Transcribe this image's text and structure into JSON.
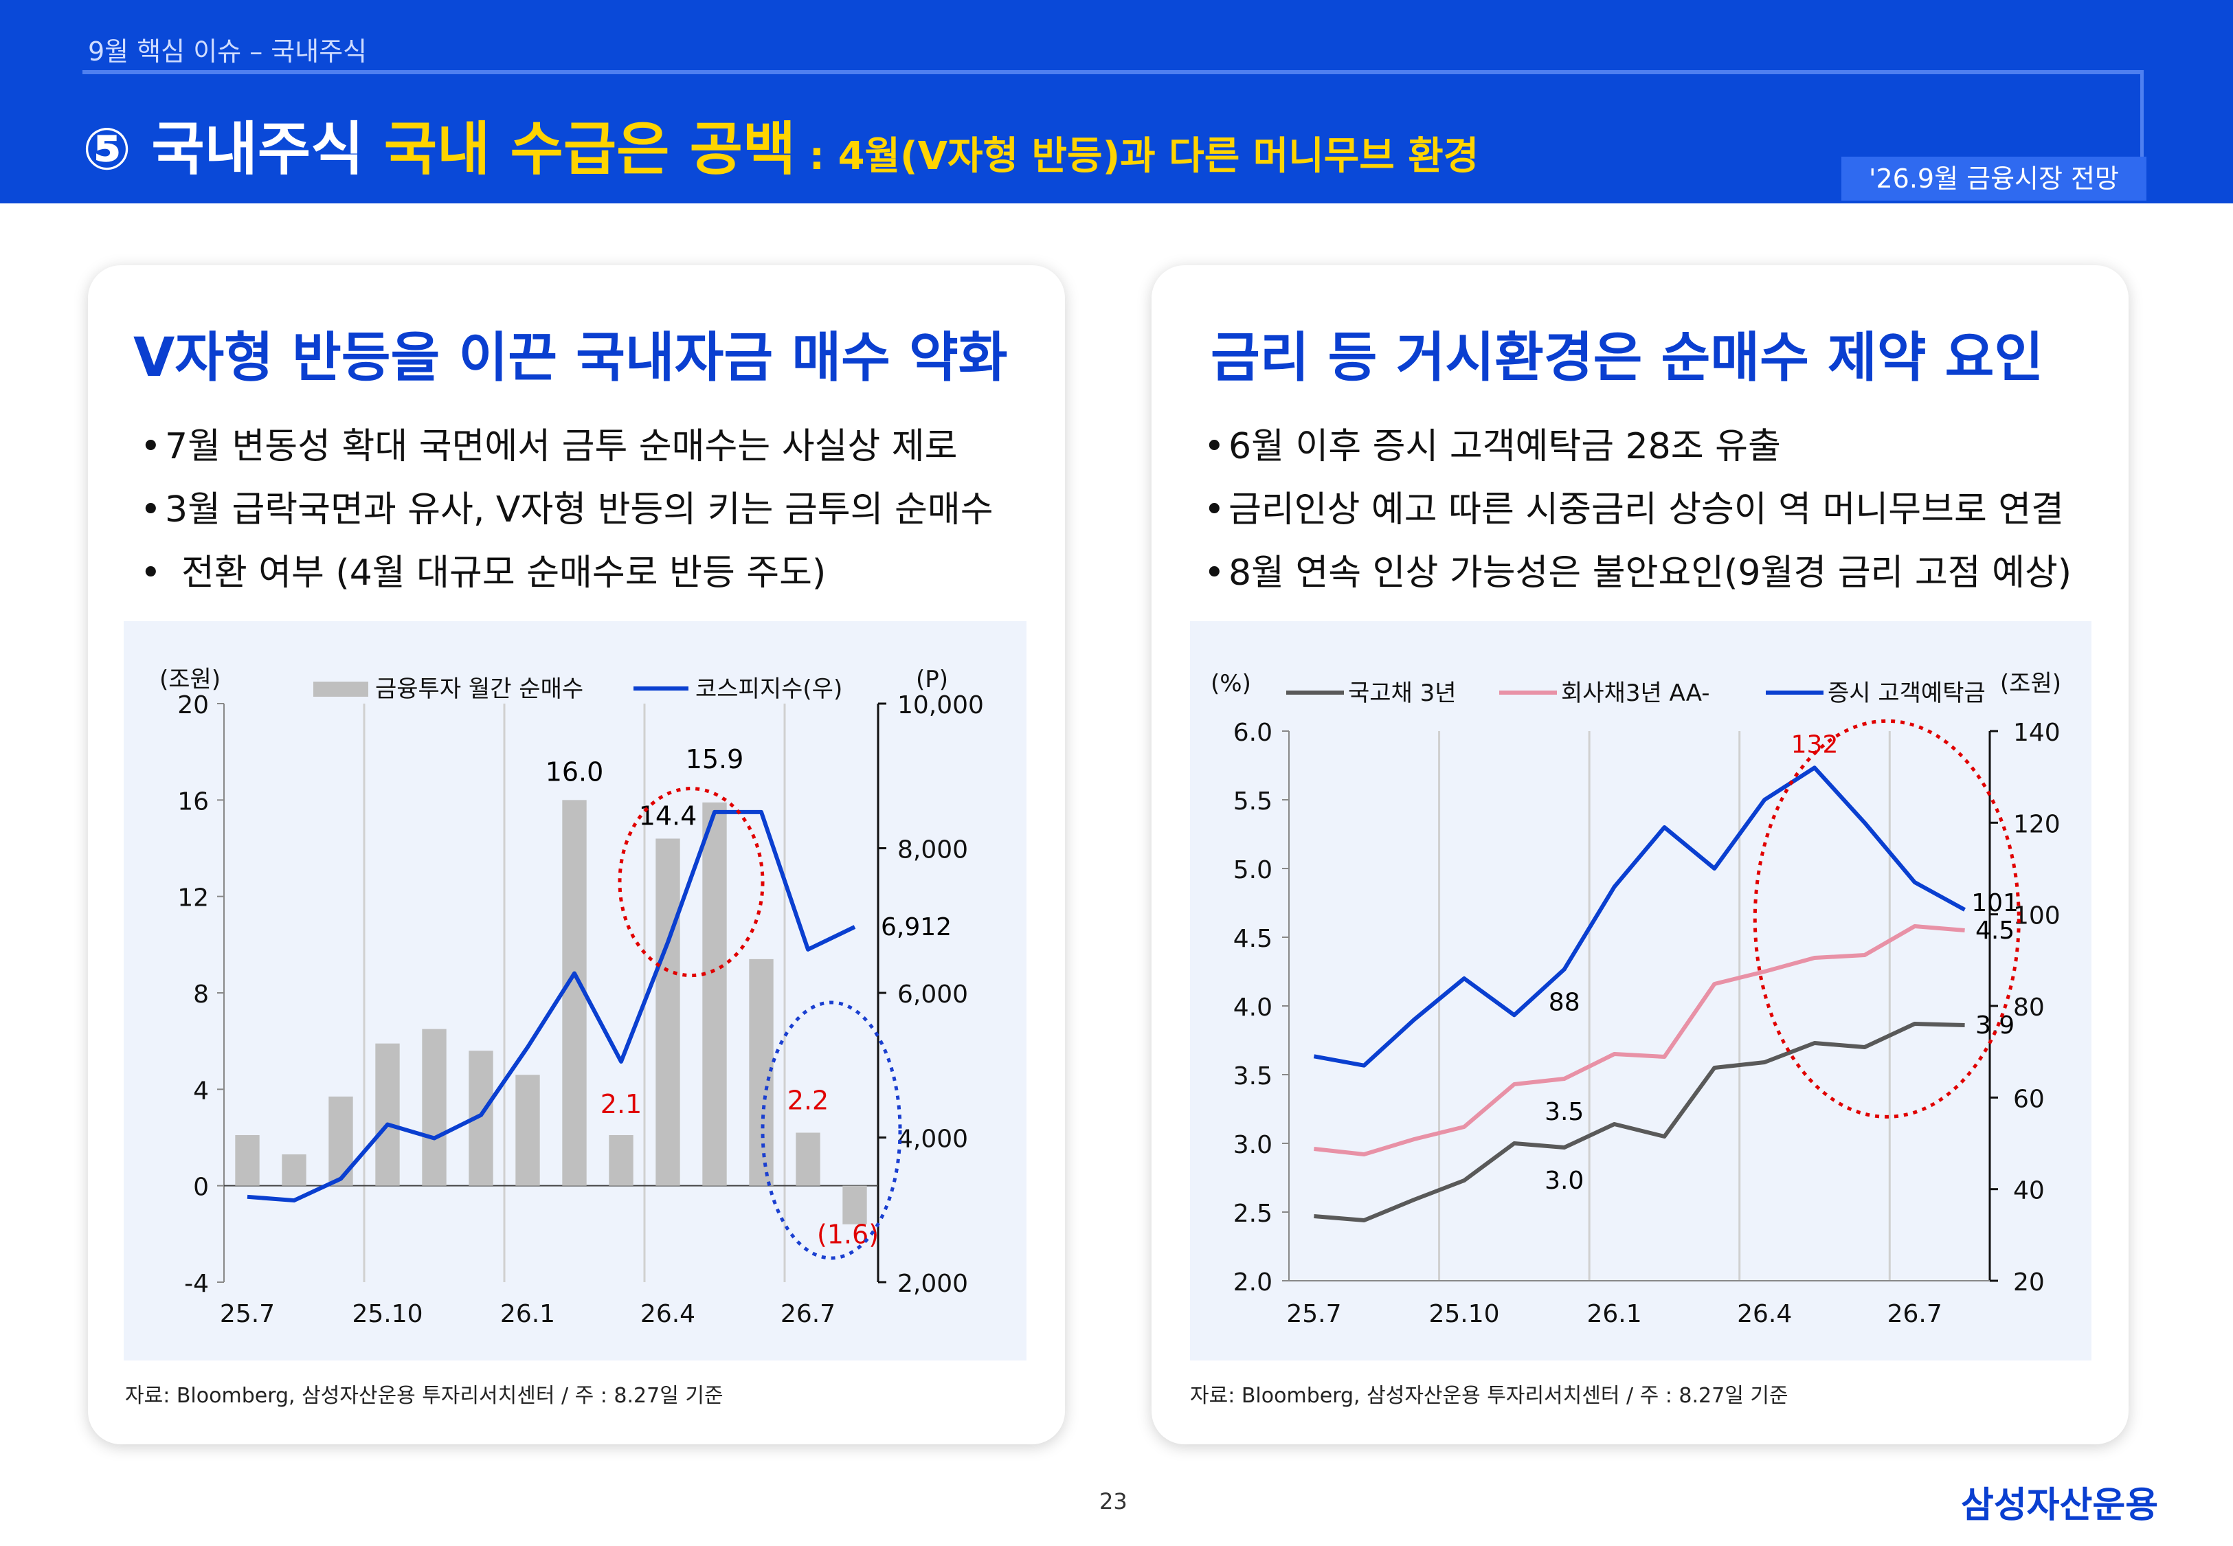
{
  "header": {
    "subtitle": "9월 핵심 이슈 – 국내주식",
    "title_main": "⑤ 국내주식 ",
    "title_highlight": "국내 수급은 공백",
    "title_small": " : 4월(V자형 반등)과 다른 머니무브 환경",
    "badge": "'26.9월 금융시장 전망"
  },
  "left": {
    "title": "V자형 반등을 이끈 국내자금 매수 약화",
    "bullets": [
      "7월 변동성 확대 국면에서 금투 순매수는 사실상 제로",
      "3월 급락국면과 유사, V자형 반등의 키는 금투의 순매수",
      "전환 여부 (4월 대규모 순매수로 반등 주도)"
    ],
    "source": "자료: Bloomberg, 삼성자산운용 투자리서치센터 / 주 : 8.27일 기준"
  },
  "right": {
    "title": "금리 등 거시환경은 순매수 제약 요인",
    "bullets": [
      "6월 이후 증시 고객예탁금 28조 유출",
      "금리인상 예고 따른 시중금리 상승이 역 머니무브로 연결",
      "8월 연속 인상 가능성은 불안요인(9월경 금리 고점 예상)"
    ],
    "source": "자료: Bloomberg, 삼성자산운용 투자리서치센터 / 주 : 8.27일 기준"
  },
  "footer": {
    "page": "23",
    "logo": "삼성자산운용"
  },
  "chart_data": [
    {
      "type": "bar",
      "left_unit": "(조원)",
      "right_unit": "(P)",
      "x_tick_labels": [
        "25.7",
        "25.10",
        "26.1",
        "26.4",
        "26.7"
      ],
      "ylim": [
        -4,
        20
      ],
      "y_ticks": [
        -4,
        0,
        4,
        8,
        12,
        16,
        20
      ],
      "y_tick_labels": [
        "-4",
        "0",
        "4",
        "8",
        "12",
        "16",
        "20"
      ],
      "y2lim": [
        2000,
        10000
      ],
      "y2_ticks": [
        2000,
        4000,
        6000,
        8000,
        10000
      ],
      "y2_tick_labels": [
        "2,000",
        "4,000",
        "6,000",
        "8,000",
        "10,000"
      ],
      "series": [
        {
          "name": "금융투자 월간 순매수",
          "kind": "bar",
          "axis": "left",
          "color": "#bfbfbf",
          "values": [
            2.1,
            1.3,
            3.7,
            5.9,
            6.5,
            5.6,
            4.6,
            16.0,
            2.1,
            14.4,
            15.9,
            9.4,
            2.2,
            -1.6
          ]
        },
        {
          "name": "코스피지수(우)",
          "kind": "line",
          "axis": "right",
          "color": "#0a3fd0",
          "values": [
            3180,
            3130,
            3430,
            4180,
            3990,
            4310,
            5250,
            6270,
            5050,
            6700,
            8500,
            8500,
            6600,
            6912
          ]
        }
      ],
      "data_labels": [
        {
          "series": 0,
          "index": 7,
          "text": "16.0",
          "color": "#000000"
        },
        {
          "series": 0,
          "index": 9,
          "text": "14.4",
          "color": "#000000"
        },
        {
          "series": 0,
          "index": 10,
          "text": "15.9",
          "color": "#000000"
        },
        {
          "series": 0,
          "index": 8,
          "text": "2.1",
          "color": "#e00000"
        },
        {
          "series": 0,
          "index": 12,
          "text": "2.2",
          "color": "#e00000"
        },
        {
          "series": 0,
          "index": 13,
          "text": "(1.6)",
          "color": "#e00000"
        },
        {
          "series": 1,
          "index": 13,
          "text": "6,912",
          "color": "#000000"
        }
      ],
      "highlights": [
        {
          "color": "#e00000",
          "covers": [
            9,
            10
          ]
        },
        {
          "color": "#1a3fd0",
          "covers": [
            12,
            13
          ]
        }
      ]
    },
    {
      "type": "line",
      "left_unit": "(%)",
      "right_unit": "(조원)",
      "x_tick_labels": [
        "25.7",
        "25.10",
        "26.1",
        "26.4",
        "26.7"
      ],
      "ylim": [
        2.0,
        6.0
      ],
      "y_ticks": [
        2.0,
        2.5,
        3.0,
        3.5,
        4.0,
        4.5,
        5.0,
        5.5,
        6.0
      ],
      "y_tick_labels": [
        "2.0",
        "2.5",
        "3.0",
        "3.5",
        "4.0",
        "4.5",
        "5.0",
        "5.5",
        "6.0"
      ],
      "y2lim": [
        20,
        140
      ],
      "y2_ticks": [
        20,
        40,
        60,
        80,
        100,
        120,
        140
      ],
      "y2_tick_labels": [
        "20",
        "40",
        "60",
        "80",
        "100",
        "120",
        "140"
      ],
      "series": [
        {
          "name": "국고채 3년",
          "axis": "left",
          "color": "#595959",
          "values": [
            2.47,
            2.44,
            2.59,
            2.73,
            3.0,
            2.97,
            3.14,
            3.05,
            3.55,
            3.59,
            3.73,
            3.7,
            3.87,
            3.86
          ]
        },
        {
          "name": "회사채3년 AA-",
          "axis": "left",
          "color": "#e891a6",
          "values": [
            2.96,
            2.92,
            3.03,
            3.12,
            3.43,
            3.47,
            3.65,
            3.63,
            4.16,
            4.25,
            4.35,
            4.37,
            4.58,
            4.55
          ]
        },
        {
          "name": "증시 고객예탁금",
          "axis": "right",
          "color": "#0a3fd0",
          "values": [
            69,
            67,
            77,
            86,
            78,
            88,
            106,
            119,
            110,
            125,
            132,
            120,
            107,
            101
          ]
        }
      ],
      "data_labels": [
        {
          "series": 2,
          "index": 5,
          "text": "88",
          "color": "#000000"
        },
        {
          "series": 1,
          "index": 5,
          "text": "3.5",
          "color": "#000000"
        },
        {
          "series": 0,
          "index": 5,
          "text": "3.0",
          "color": "#000000"
        },
        {
          "series": 2,
          "index": 10,
          "text": "132",
          "color": "#e00000"
        },
        {
          "series": 2,
          "index": 13,
          "text": "101",
          "color": "#000000"
        },
        {
          "series": 1,
          "index": 13,
          "text": "4.5",
          "color": "#000000"
        },
        {
          "series": 0,
          "index": 13,
          "text": "3.9",
          "color": "#000000"
        }
      ],
      "highlights": [
        {
          "color": "#e00000",
          "covers": [
            10,
            13
          ]
        }
      ]
    }
  ]
}
